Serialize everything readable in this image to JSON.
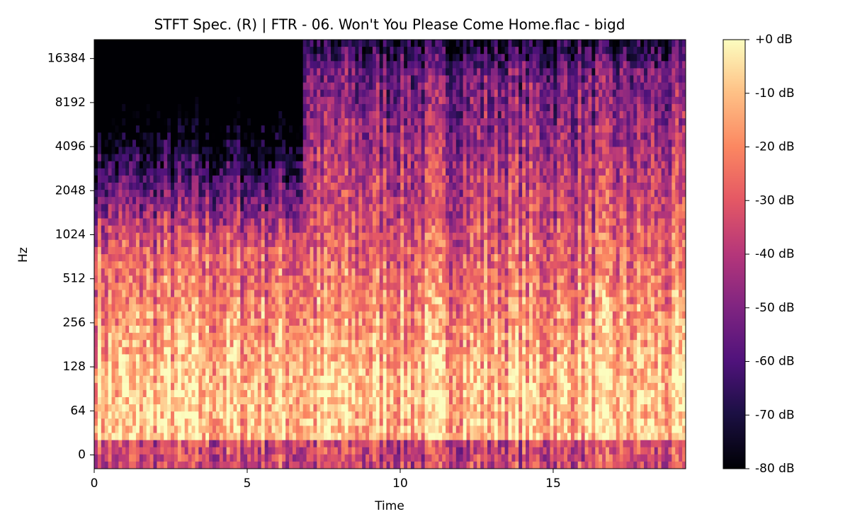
{
  "chart_data": {
    "type": "spectrogram",
    "title": "STFT Spec. (R) | FTR - 06. Won't You Please Come Home.flac - bigd",
    "x_label": "Time",
    "y_label": "Hz",
    "xlim": [
      0,
      19.33
    ],
    "xticks": [
      0,
      5,
      10,
      15
    ],
    "ylim": [
      -20,
      22050
    ],
    "yscale": "symlog",
    "linthresh": 64,
    "yticks": [
      0,
      64,
      128,
      256,
      512,
      1024,
      2048,
      4096,
      8192,
      16384
    ],
    "colormap": "magma",
    "colorbar": {
      "lim": [
        -80,
        0
      ],
      "ticks": [
        {
          "value": 0,
          "label": "+0 dB"
        },
        {
          "value": -10,
          "label": "-10 dB"
        },
        {
          "value": -20,
          "label": "-20 dB"
        },
        {
          "value": -30,
          "label": "-30 dB"
        },
        {
          "value": -40,
          "label": "-40 dB"
        },
        {
          "value": -50,
          "label": "-50 dB"
        },
        {
          "value": -60,
          "label": "-60 dB"
        },
        {
          "value": -70,
          "label": "-70 dB"
        },
        {
          "value": -80,
          "label": "-80 dB"
        }
      ]
    }
  }
}
